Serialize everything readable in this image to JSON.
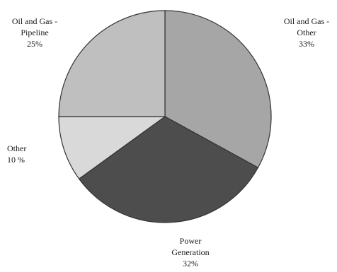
{
  "chart_data": {
    "type": "pie",
    "title": "",
    "slices": [
      {
        "label_lines": [
          "Oil and Gas -",
          "Other"
        ],
        "pct_label": "33%",
        "value": 33,
        "color": "#a6a6a6"
      },
      {
        "label_lines": [
          "Power",
          "Generation"
        ],
        "pct_label": "32%",
        "value": 32,
        "color": "#4d4d4d"
      },
      {
        "label_lines": [
          "Other"
        ],
        "pct_label": "10 %",
        "value": 10,
        "color": "#d9d9d9"
      },
      {
        "label_lines": [
          "Oil and Gas -",
          "Pipeline"
        ],
        "pct_label": "25%",
        "value": 25,
        "color": "#bfbfbf"
      }
    ]
  }
}
